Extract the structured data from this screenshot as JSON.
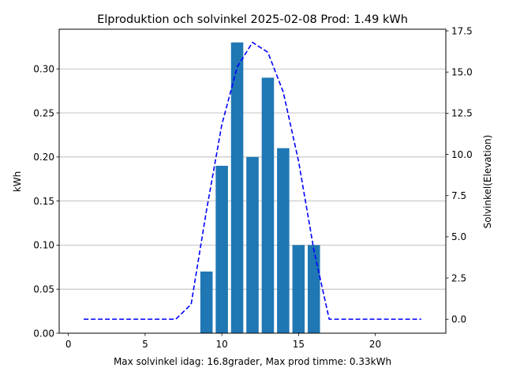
{
  "chart_data": {
    "type": "bar",
    "title": "Elproduktion och solvinkel 2025-02-08 Prod: 1.49 kWh",
    "xlabel": "Max solvinkel idag: 16.8grader, Max prod timme: 0.33kWh",
    "ylabel": "kWh",
    "y2label": "Solvinkel(Elevation)",
    "xlim": [
      -0.6,
      24.6
    ],
    "ylim": [
      0,
      0.345
    ],
    "y2lim": [
      -0.85,
      17.6
    ],
    "xticks": [
      0,
      5,
      10,
      15,
      20
    ],
    "yticks": [
      0.0,
      0.05,
      0.1,
      0.15,
      0.2,
      0.25,
      0.3
    ],
    "y2ticks": [
      0.0,
      2.5,
      5.0,
      7.5,
      10.0,
      12.5,
      15.0,
      17.5
    ],
    "grid": "y-axis (left)",
    "bar_color": "#1f77b4",
    "line_color": "#0000ff",
    "bars": {
      "name": "kWh",
      "x": [
        9,
        10,
        11,
        12,
        13,
        14,
        15,
        16
      ],
      "values": [
        0.07,
        0.19,
        0.33,
        0.2,
        0.29,
        0.21,
        0.1,
        0.1
      ]
    },
    "line": {
      "name": "Solvinkel",
      "style": "dashed",
      "x": [
        1,
        2,
        3,
        4,
        5,
        6,
        7,
        8,
        9,
        10,
        11,
        12,
        13,
        14,
        15,
        16,
        17,
        18,
        19,
        20,
        21,
        22,
        23
      ],
      "values": [
        0,
        0,
        0,
        0,
        0,
        0,
        0,
        0.9,
        6.6,
        11.8,
        15.3,
        16.8,
        16.2,
        13.8,
        9.6,
        4.2,
        0,
        0,
        0,
        0,
        0,
        0,
        0
      ]
    }
  }
}
